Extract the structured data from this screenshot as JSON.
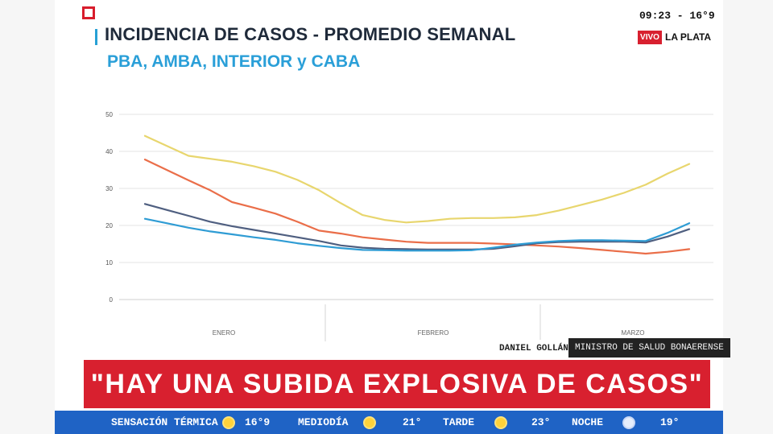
{
  "header": {
    "title": "INCIDENCIA DE CASOS - PROMEDIO SEMANAL",
    "subtitle": "PBA, AMBA, INTERIOR y CABA"
  },
  "broadcast": {
    "clock": "09:23 - 16°9",
    "live_label": "VIVO",
    "location": "LA PLATA"
  },
  "chart_data": {
    "type": "line",
    "ylim": [
      0,
      50
    ],
    "yticks": [
      "0",
      "10",
      "20",
      "30",
      "40",
      "50"
    ],
    "months": [
      "ENERO",
      "FEBRERO",
      "MARZO"
    ],
    "x": [
      0,
      1,
      2,
      3,
      4,
      5,
      6,
      7,
      8,
      9,
      10,
      11,
      12,
      13,
      14,
      15,
      16,
      17,
      18,
      19,
      20,
      21,
      22,
      23,
      24,
      25
    ],
    "series": [
      {
        "color": "#e8d66e",
        "values": [
          44.2,
          41.5,
          38.8,
          38,
          37.2,
          36,
          34.5,
          32.3,
          29.5,
          26,
          22.8,
          21.5,
          20.8,
          21.2,
          21.8,
          22,
          22,
          22.2,
          22.8,
          24,
          25.5,
          27,
          28.8,
          31,
          34,
          36.6
        ]
      },
      {
        "color": "#ea6e49",
        "values": [
          37.8,
          35,
          32.2,
          29.5,
          26.3,
          24.8,
          23.2,
          21,
          18.6,
          17.8,
          16.8,
          16.2,
          15.6,
          15.3,
          15.3,
          15.3,
          15.1,
          14.9,
          14.6,
          14.3,
          13.9,
          13.4,
          12.9,
          12.4,
          12.9,
          13.6
        ]
      },
      {
        "color": "#4f5f80",
        "values": [
          25.8,
          24.2,
          22.6,
          21,
          19.8,
          18.8,
          17.8,
          16.8,
          15.8,
          14.6,
          14,
          13.7,
          13.6,
          13.5,
          13.5,
          13.5,
          13.7,
          14.4,
          15.2,
          15.5,
          15.6,
          15.6,
          15.6,
          15.4,
          17,
          19
        ]
      },
      {
        "color": "#2f9cd4",
        "values": [
          21.8,
          20.6,
          19.4,
          18.4,
          17.6,
          16.8,
          16.1,
          15.2,
          14.5,
          13.9,
          13.4,
          13.3,
          13.2,
          13.2,
          13.2,
          13.3,
          14,
          14.8,
          15.4,
          15.8,
          16,
          16,
          15.9,
          15.8,
          18,
          20.6
        ]
      }
    ]
  },
  "lower_third": {
    "speaker_name": "DANIEL GOLLÁN",
    "speaker_role": "MINISTRO DE SALUD BONAERENSE",
    "headline": "\"HAY UNA SUBIDA EXPLOSIVA DE CASOS\""
  },
  "weather": {
    "items": [
      {
        "label": "SENSACIÓN TÉRMICA",
        "value": "16°9",
        "icon": "sun-icon"
      },
      {
        "label": "MEDIODÍA",
        "value": "21°",
        "icon": "sun-icon"
      },
      {
        "label": "TARDE",
        "value": "23°",
        "icon": "sun-cloud-icon"
      },
      {
        "label": "NOCHE",
        "value": "19°",
        "icon": "moon-icon"
      }
    ]
  },
  "colors": {
    "accent_red": "#d8202f",
    "title_blue": "#2a9fd8",
    "weather_blue": "#1f63c5"
  }
}
